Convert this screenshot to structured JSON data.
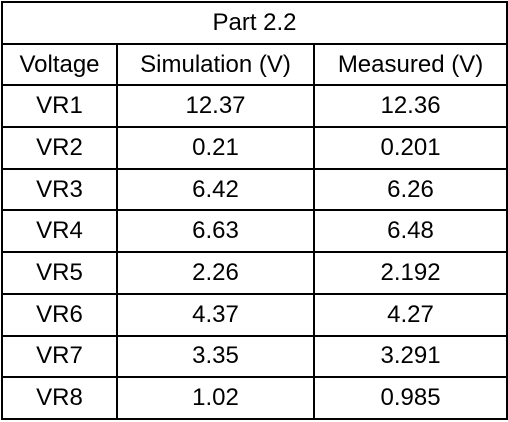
{
  "table": {
    "title": "Part 2.2",
    "headers": [
      "Voltage",
      "Simulation (V)",
      "Measured (V)"
    ],
    "rows": [
      [
        "VR1",
        "12.37",
        "12.36"
      ],
      [
        "VR2",
        "0.21",
        "0.201"
      ],
      [
        "VR3",
        "6.42",
        "6.26"
      ],
      [
        "VR4",
        "6.63",
        "6.48"
      ],
      [
        "VR5",
        "2.26",
        "2.192"
      ],
      [
        "VR6",
        "4.37",
        "4.27"
      ],
      [
        "VR7",
        "3.35",
        "3.291"
      ],
      [
        "VR8",
        "1.02",
        "0.985"
      ]
    ]
  }
}
